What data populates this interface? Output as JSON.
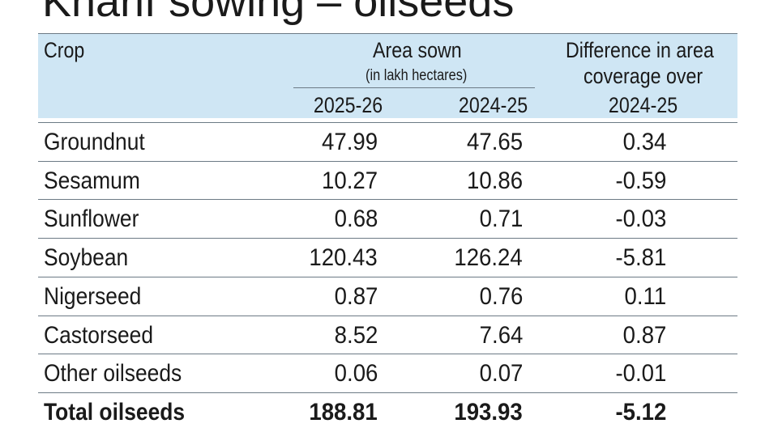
{
  "title": "Kharif sowing – oilseeds",
  "table": {
    "crop_header": "Crop",
    "area_header": "Area sown",
    "area_unit": "(in lakh hectares)",
    "diff_header_line1": "Difference in area",
    "diff_header_line2": "coverage over",
    "col_2025": "2025-26",
    "col_2024": "2024-25",
    "col_diff": "2024-25"
  },
  "rows": [
    {
      "crop": "Groundnut",
      "y2025": "47.99",
      "y2024": "47.65",
      "diff": "0.34"
    },
    {
      "crop": "Sesamum",
      "y2025": "10.27",
      "y2024": "10.86",
      "diff": "-0.59"
    },
    {
      "crop": "Sunflower",
      "y2025": "0.68",
      "y2024": "0.71",
      "diff": "-0.03"
    },
    {
      "crop": "Soybean",
      "y2025": "120.43",
      "y2024": "126.24",
      "diff": "-5.81"
    },
    {
      "crop": "Nigerseed",
      "y2025": "0.87",
      "y2024": "0.76",
      "diff": "0.11"
    },
    {
      "crop": "Castorseed",
      "y2025": "8.52",
      "y2024": "7.64",
      "diff": "0.87"
    },
    {
      "crop": "Other oilseeds",
      "y2025": "0.06",
      "y2024": "0.07",
      "diff": "-0.01"
    },
    {
      "crop": "Total oilseeds",
      "y2025": "188.81",
      "y2024": "193.93",
      "diff": "-5.12"
    }
  ],
  "colors": {
    "header_bg": "#cfe6f4",
    "rule": "#6c7a85",
    "text": "#1a1a1a"
  },
  "chart_data": {
    "type": "table",
    "title": "Kharif sowing – oilseeds",
    "columns": [
      "Crop",
      "2025-26",
      "2024-25",
      "Difference in area coverage over 2024-25"
    ],
    "unit": "lakh hectares",
    "categories": [
      "Groundnut",
      "Sesamum",
      "Sunflower",
      "Soybean",
      "Nigerseed",
      "Castorseed",
      "Other oilseeds",
      "Total oilseeds"
    ],
    "series": [
      {
        "name": "2025-26",
        "values": [
          47.99,
          10.27,
          0.68,
          120.43,
          0.87,
          8.52,
          0.06,
          188.81
        ]
      },
      {
        "name": "2024-25",
        "values": [
          47.65,
          10.86,
          0.71,
          126.24,
          0.76,
          7.64,
          0.07,
          193.93
        ]
      },
      {
        "name": "Difference in area coverage over 2024-25",
        "values": [
          0.34,
          -0.59,
          -0.03,
          -5.81,
          0.11,
          0.87,
          -0.01,
          -5.12
        ]
      }
    ]
  }
}
